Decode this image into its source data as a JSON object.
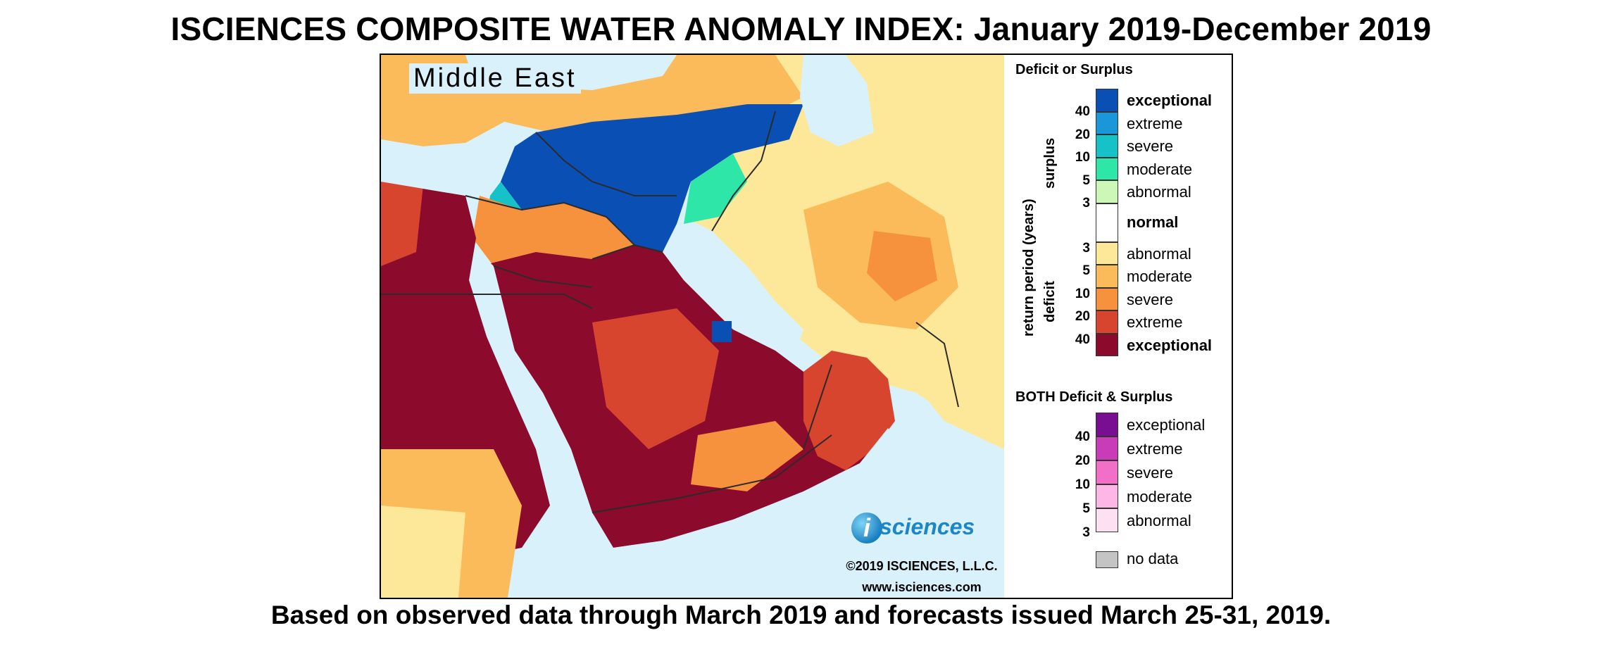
{
  "title": "ISCIENCES COMPOSITE WATER ANOMALY INDEX: January 2019-December 2019",
  "footer": "Based on observed data through March 2019 and forecasts issued March 25-31, 2019.",
  "map": {
    "region_label": "Middle East",
    "logo_text": "sciences",
    "logo_letter": "i",
    "copyright": "©2019 ISCIENCES, L.L.C.",
    "website": "www.isciences.com"
  },
  "legend": {
    "section1_title": "Deficit or Surplus",
    "axis_label": "return period (years)",
    "surplus_label": "surplus",
    "deficit_label": "deficit",
    "surplus_items": [
      {
        "label": "exceptional",
        "color": "#0a4fb4",
        "bold": true
      },
      {
        "label": "extreme",
        "color": "#1a97d8",
        "bold": false
      },
      {
        "label": "severe",
        "color": "#16c2c8",
        "bold": false
      },
      {
        "label": "moderate",
        "color": "#2ee6a8",
        "bold": false
      },
      {
        "label": "abnormal",
        "color": "#cdf7b6",
        "bold": false
      }
    ],
    "normal_item": {
      "label": "normal",
      "color": "#ffffff"
    },
    "deficit_items": [
      {
        "label": "abnormal",
        "color": "#fde89a",
        "bold": false
      },
      {
        "label": "moderate",
        "color": "#fbbb5a",
        "bold": false
      },
      {
        "label": "severe",
        "color": "#f6913e",
        "bold": false
      },
      {
        "label": "extreme",
        "color": "#d8452f",
        "bold": false
      },
      {
        "label": "exceptional",
        "color": "#8c0b2c",
        "bold": true
      }
    ],
    "surplus_ticks": [
      "40",
      "20",
      "10",
      "5",
      "3"
    ],
    "deficit_ticks": [
      "3",
      "5",
      "10",
      "20",
      "40"
    ],
    "section2_title": "BOTH Deficit & Surplus",
    "both_items": [
      {
        "label": "exceptional",
        "color": "#7a0e93"
      },
      {
        "label": "extreme",
        "color": "#c83cb8"
      },
      {
        "label": "severe",
        "color": "#f16fc6"
      },
      {
        "label": "moderate",
        "color": "#fdb7e6"
      },
      {
        "label": "abnormal",
        "color": "#fde0f1"
      }
    ],
    "both_ticks": [
      "40",
      "20",
      "10",
      "5",
      "3"
    ],
    "nodata_label": "no data",
    "nodata_color": "#c4c4c4"
  }
}
